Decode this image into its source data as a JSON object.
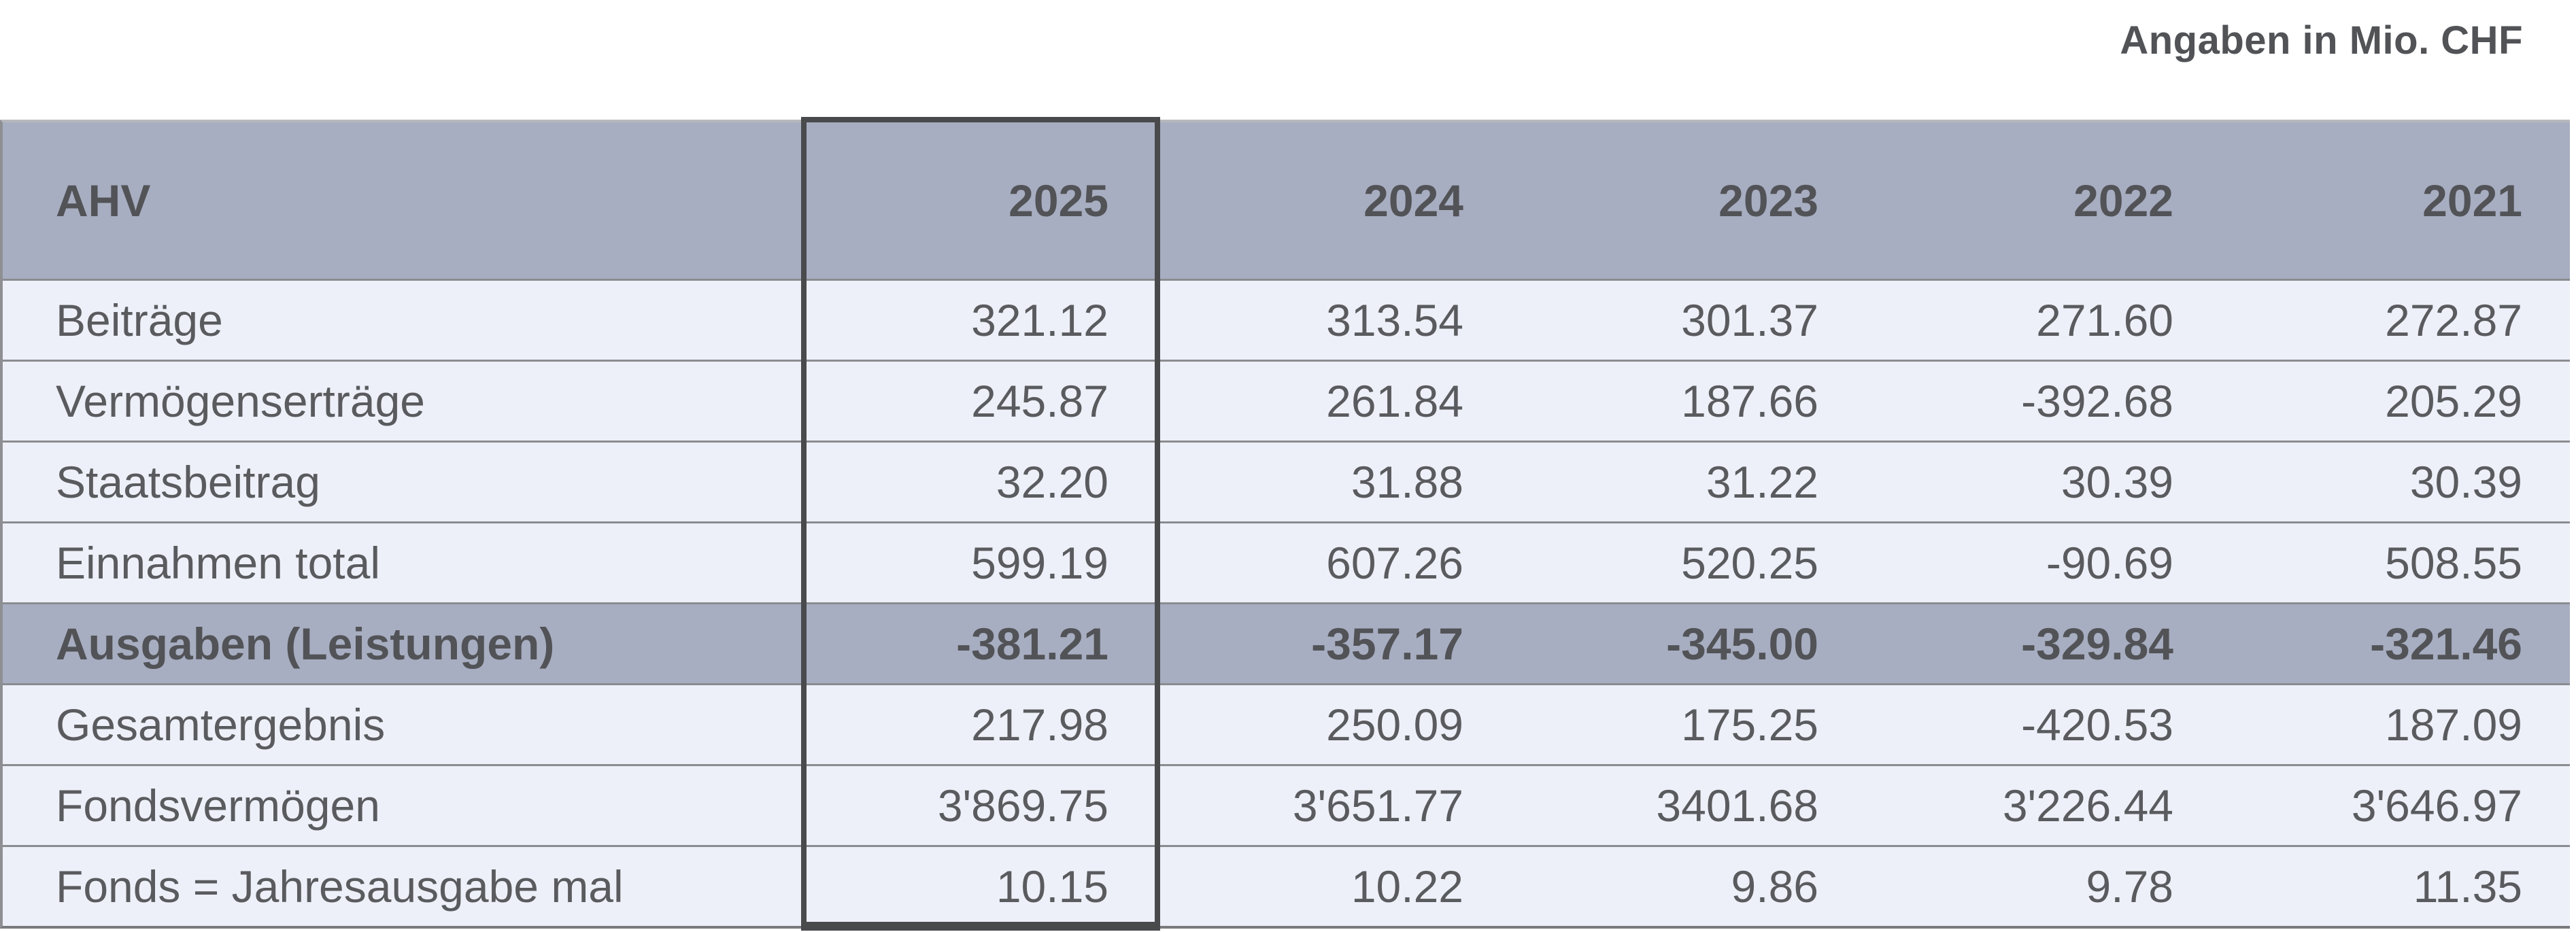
{
  "note": "Angaben in Mio. CHF",
  "table": {
    "header": {
      "label": "AHV",
      "years": [
        "2025",
        "2024",
        "2023",
        "2022",
        "2021"
      ]
    },
    "highlighted_year": "2025",
    "rows": [
      {
        "label": "Beiträge",
        "emphasis": false,
        "values": [
          "321.12",
          "313.54",
          "301.37",
          "271.60",
          "272.87"
        ]
      },
      {
        "label": "Vermögenserträge",
        "emphasis": false,
        "values": [
          "245.87",
          "261.84",
          "187.66",
          "-392.68",
          "205.29"
        ]
      },
      {
        "label": "Staatsbeitrag",
        "emphasis": false,
        "values": [
          "32.20",
          "31.88",
          "31.22",
          "30.39",
          "30.39"
        ]
      },
      {
        "label": "Einnahmen total",
        "emphasis": false,
        "values": [
          "599.19",
          "607.26",
          "520.25",
          "-90.69",
          "508.55"
        ]
      },
      {
        "label": "Ausgaben (Leistungen)",
        "emphasis": true,
        "values": [
          "-381.21",
          "-357.17",
          "-345.00",
          "-329.84",
          "-321.46"
        ]
      },
      {
        "label": "Gesamtergebnis",
        "emphasis": false,
        "values": [
          "217.98",
          "250.09",
          "175.25",
          "-420.53",
          "187.09"
        ]
      },
      {
        "label": "Fondsvermögen",
        "emphasis": false,
        "values": [
          "3'869.75",
          "3'651.77",
          "3401.68",
          "3'226.44",
          "3'646.97"
        ]
      },
      {
        "label": "Fonds = Jahresausgabe mal",
        "emphasis": false,
        "values": [
          "10.15",
          "10.22",
          "9.86",
          "9.78",
          "11.35"
        ]
      }
    ]
  },
  "chart_data": {
    "type": "table",
    "title": "AHV",
    "subtitle": "Angaben in Mio. CHF",
    "columns": [
      "AHV",
      "2025",
      "2024",
      "2023",
      "2022",
      "2021"
    ],
    "highlighted_column": "2025",
    "series": [
      {
        "name": "Beiträge",
        "values": [
          321.12,
          313.54,
          301.37,
          271.6,
          272.87
        ]
      },
      {
        "name": "Vermögenserträge",
        "values": [
          245.87,
          261.84,
          187.66,
          -392.68,
          205.29
        ]
      },
      {
        "name": "Staatsbeitrag",
        "values": [
          32.2,
          31.88,
          31.22,
          30.39,
          30.39
        ]
      },
      {
        "name": "Einnahmen total",
        "values": [
          599.19,
          607.26,
          520.25,
          -90.69,
          508.55
        ]
      },
      {
        "name": "Ausgaben (Leistungen)",
        "values": [
          -381.21,
          -357.17,
          -345.0,
          -329.84,
          -321.46
        ]
      },
      {
        "name": "Gesamtergebnis",
        "values": [
          217.98,
          250.09,
          175.25,
          -420.53,
          187.09
        ]
      },
      {
        "name": "Fondsvermögen",
        "values": [
          3869.75,
          3651.77,
          3401.68,
          3226.44,
          3646.97
        ]
      },
      {
        "name": "Fonds = Jahresausgabe mal",
        "values": [
          10.15,
          10.22,
          9.86,
          9.78,
          11.35
        ]
      }
    ]
  },
  "colors": {
    "header_bg": "#a8aec1",
    "row_bg": "#eef0f9",
    "separator": "#8b8c90",
    "highlight_border": "#494a4c",
    "text": "#5a5b5e",
    "text_strong": "#525357",
    "background": "#ffffff"
  }
}
